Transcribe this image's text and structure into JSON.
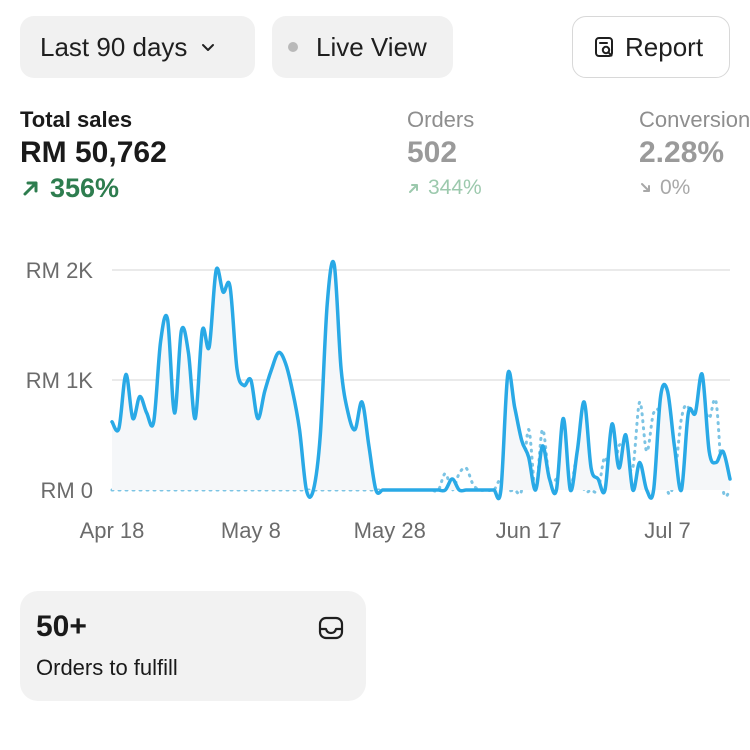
{
  "toolbar": {
    "range_label": "Last 90 days",
    "live_label": "Live View",
    "report_label": "Report"
  },
  "metrics": {
    "sales": {
      "label": "Total sales",
      "value": "RM 50,762",
      "change": "356%",
      "direction": "up"
    },
    "orders": {
      "label": "Orders",
      "value": "502",
      "change": "344%",
      "direction": "up"
    },
    "conversion": {
      "label": "Conversion",
      "value": "2.28%",
      "change": "0%",
      "direction": "down"
    }
  },
  "colors": {
    "current_series": "#29a9e6",
    "comparison_series": "#7cc4e4",
    "positive": "#2e7d4f",
    "muted": "#9a9a9a"
  },
  "chart_data": {
    "type": "line",
    "title": "",
    "xlabel": "",
    "ylabel": "",
    "y_ticks": [
      "RM 2K",
      "RM 1K",
      "RM 0"
    ],
    "y_tick_values": [
      2000,
      1000,
      0
    ],
    "ylim": [
      0,
      2000
    ],
    "x_ticks": [
      "Apr 18",
      "May 8",
      "May 28",
      "Jun 17",
      "Jul 7"
    ],
    "x_tick_days": [
      0,
      20,
      40,
      60,
      80
    ],
    "x_range_days": [
      0,
      89
    ],
    "grid": true,
    "legend": "none",
    "series": [
      {
        "style": "solid",
        "values": [
          620,
          560,
          1050,
          650,
          850,
          700,
          620,
          1350,
          1550,
          700,
          1450,
          1250,
          650,
          1450,
          1300,
          2000,
          1800,
          1850,
          1100,
          950,
          1000,
          650,
          900,
          1100,
          1250,
          1150,
          900,
          550,
          0,
          0,
          500,
          1700,
          2050,
          1100,
          700,
          550,
          800,
          400,
          0,
          0,
          0,
          0,
          0,
          0,
          0,
          0,
          0,
          0,
          0,
          100,
          0,
          0,
          0,
          0,
          0,
          0,
          0,
          1050,
          750,
          450,
          300,
          0,
          400,
          100,
          0,
          650,
          0,
          350,
          800,
          200,
          100,
          0,
          600,
          200,
          500,
          0,
          250,
          0,
          0,
          850,
          900,
          400,
          0,
          700,
          700,
          1050,
          350,
          250,
          350,
          100
        ]
      },
      {
        "style": "dotted",
        "values": [
          0,
          0,
          0,
          0,
          0,
          0,
          0,
          0,
          0,
          0,
          0,
          0,
          0,
          0,
          0,
          0,
          0,
          0,
          0,
          0,
          0,
          0,
          0,
          0,
          0,
          0,
          0,
          0,
          0,
          0,
          0,
          0,
          0,
          0,
          0,
          0,
          0,
          0,
          0,
          0,
          0,
          0,
          0,
          0,
          0,
          0,
          0,
          0,
          150,
          0,
          150,
          200,
          50,
          0,
          0,
          0,
          100,
          0,
          0,
          0,
          550,
          0,
          550,
          100,
          100,
          200,
          0,
          300,
          0,
          0,
          0,
          300,
          0,
          400,
          300,
          200,
          800,
          350,
          700,
          650,
          0,
          100,
          650,
          750,
          300,
          750,
          650,
          800,
          0,
          0
        ]
      }
    ]
  },
  "fulfill_card": {
    "value": "50+",
    "label": "Orders to fulfill"
  }
}
